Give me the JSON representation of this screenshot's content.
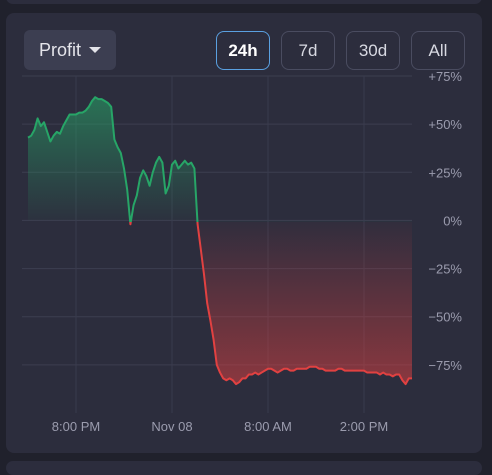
{
  "widget": {
    "metric_selector": {
      "label": "Profit",
      "icon": "caret-down-icon"
    },
    "time_ranges": [
      {
        "label": "24h",
        "active": true
      },
      {
        "label": "7d",
        "active": false
      },
      {
        "label": "30d",
        "active": false
      },
      {
        "label": "All",
        "active": false
      }
    ]
  },
  "colors": {
    "positive": "#27a567",
    "negative": "#e14141",
    "active_range_border": "#5aa0e0",
    "card_background": "#2c2d3d"
  },
  "chart_data": {
    "type": "area",
    "x_tick_labels": [
      "8:00 PM",
      "Nov 08",
      "8:00 AM",
      "2:00 PM"
    ],
    "x_tick_positions": [
      20,
      26,
      32,
      38
    ],
    "x_range": [
      17,
      41
    ],
    "y_tick_labels": [
      "+75%",
      "+50%",
      "+25%",
      "0%",
      "−25%",
      "−50%",
      "−75%"
    ],
    "y_ticks": [
      75,
      50,
      25,
      0,
      -25,
      -50,
      -75
    ],
    "ylim": [
      -100,
      75
    ],
    "y_axis_position": "right",
    "grid": true,
    "series": [
      {
        "x": [
          17.0,
          17.2,
          17.4,
          17.6,
          17.8,
          18.0,
          18.2,
          18.4,
          18.6,
          18.8,
          19.0,
          19.2,
          19.4,
          19.6,
          19.8,
          20.0,
          20.2,
          20.4,
          20.6,
          20.8,
          21.0,
          21.2,
          21.4,
          21.6,
          21.8,
          22.0,
          22.2,
          22.4,
          22.6,
          22.8,
          23.0,
          23.2,
          23.4,
          23.6,
          23.8,
          24.0,
          24.2,
          24.4,
          24.6,
          24.8,
          25.0,
          25.2,
          25.4,
          25.6,
          25.8,
          26.0,
          26.2,
          26.4,
          26.6,
          26.8,
          27.0,
          27.2,
          27.4,
          27.6,
          27.8,
          28.0,
          28.2,
          28.4,
          28.6,
          28.8,
          29.0,
          29.2,
          29.4,
          29.6,
          29.8,
          30.0,
          30.2,
          30.4,
          30.6,
          30.8,
          31.0,
          31.2,
          31.4,
          31.6,
          31.8,
          32.0,
          32.2,
          32.4,
          32.6,
          32.8,
          33.0,
          33.2,
          33.4,
          33.6,
          33.8,
          34.0,
          34.2,
          34.4,
          34.6,
          34.8,
          35.0,
          35.2,
          35.4,
          35.6,
          35.8,
          36.0,
          36.2,
          36.4,
          36.6,
          36.8,
          37.0,
          37.2,
          37.4,
          37.6,
          37.8,
          38.0,
          38.2,
          38.4,
          38.6,
          38.8,
          39.0,
          39.2,
          39.4,
          39.6,
          39.8,
          40.0,
          40.2,
          40.4,
          40.6,
          40.8,
          41.0
        ],
        "y": [
          43,
          44,
          47,
          53,
          49,
          51,
          46,
          41,
          44,
          46,
          45,
          49,
          52,
          55,
          55,
          55,
          56,
          56,
          57,
          59,
          62,
          64,
          63,
          63,
          62,
          61,
          59,
          42,
          38,
          35,
          27,
          16,
          -2,
          8,
          13,
          22,
          26,
          23,
          18,
          25,
          30,
          33,
          30,
          14,
          18,
          29,
          31,
          27,
          29,
          31,
          29,
          30,
          27,
          -2,
          -15,
          -28,
          -43,
          -52,
          -62,
          -75,
          -79,
          -82,
          -83,
          -82,
          -83,
          -85,
          -84,
          -82,
          -82,
          -80,
          -80,
          -79,
          -80,
          -79,
          -78,
          -77,
          -77,
          -78,
          -79,
          -78,
          -77,
          -77,
          -78,
          -78,
          -77,
          -77,
          -77,
          -77,
          -76,
          -76,
          -76,
          -77,
          -77,
          -78,
          -78,
          -78,
          -78,
          -77,
          -77,
          -78,
          -78,
          -78,
          -78,
          -78,
          -78,
          -78,
          -79,
          -79,
          -79,
          -79,
          -80,
          -79,
          -80,
          -80,
          -81,
          -80,
          -80,
          -83,
          -85,
          -82,
          -82
        ]
      }
    ]
  }
}
